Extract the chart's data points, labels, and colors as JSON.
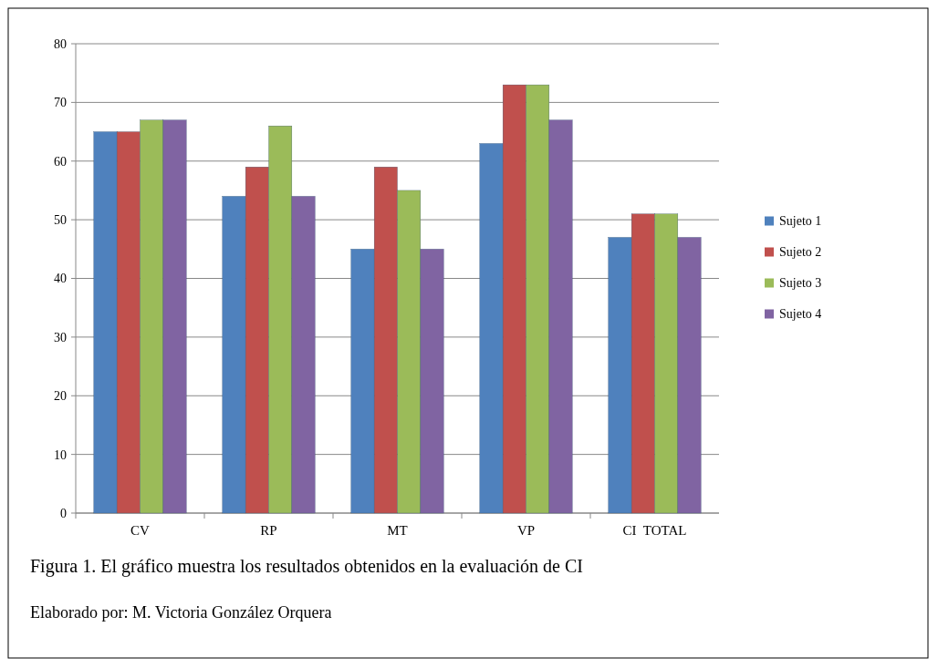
{
  "chart_data": {
    "type": "bar",
    "title": "Figura 1. El gráfico muestra los resultados obtenidos en la evaluación de CI",
    "annotations": [
      "Elaborado por: M. Victoria González Orquera"
    ],
    "categories": [
      "CV",
      "RP",
      "MT",
      "VP",
      "CI  TOTAL"
    ],
    "series": [
      {
        "name": "Sujeto 1",
        "color": "#4f81bd",
        "values": [
          65,
          54,
          45,
          63,
          47
        ]
      },
      {
        "name": "Sujeto 2",
        "color": "#c0504d",
        "values": [
          65,
          59,
          59,
          73,
          51
        ]
      },
      {
        "name": "Sujeto 3",
        "color": "#9bbb59",
        "values": [
          67,
          66,
          55,
          73,
          51
        ]
      },
      {
        "name": "Sujeto 4",
        "color": "#8064a2",
        "values": [
          67,
          54,
          45,
          67,
          47
        ]
      }
    ],
    "ylim": [
      0,
      80
    ],
    "yticks": [
      0,
      10,
      20,
      30,
      40,
      50,
      60,
      70,
      80
    ],
    "grid": "y",
    "legend": "right"
  }
}
